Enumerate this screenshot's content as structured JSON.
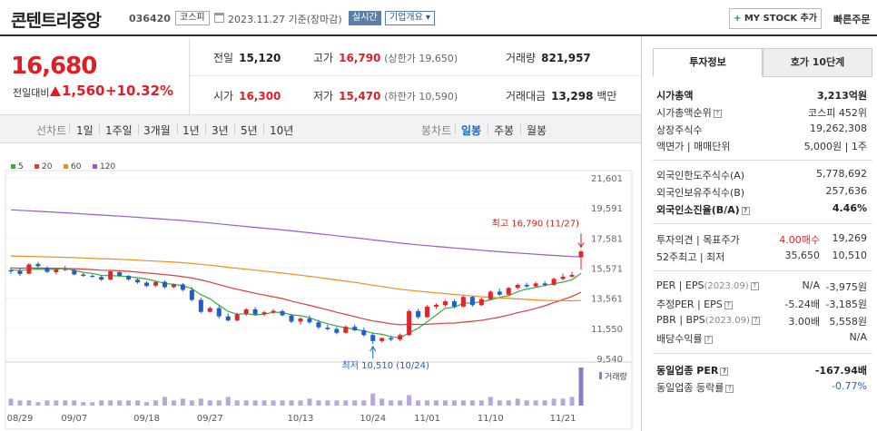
{
  "header": {
    "company_name": "콘텐트리중앙",
    "code": "036420",
    "market": "코스피",
    "date": "2023.11.27 기준(장마감)",
    "realtime_label": "실시간",
    "company_info_label": "기업개요",
    "mystock_button": "MY STOCK 추가",
    "mystock_plus": "+",
    "quick_order": "빠른주문"
  },
  "price": {
    "current": "16,680",
    "change_label": "전일대비",
    "change_amount": "1,560",
    "change_pct": "+10.32%"
  },
  "stats": {
    "prev_close": {
      "label": "전일",
      "value": "15,120"
    },
    "high": {
      "label": "고가",
      "value": "16,790",
      "sub": "(상한가 19,650)"
    },
    "volume": {
      "label": "거래량",
      "value": "821,957"
    },
    "open": {
      "label": "시가",
      "value": "16,300"
    },
    "low": {
      "label": "저가",
      "value": "15,470",
      "sub": "(하한가 10,590)"
    },
    "amount": {
      "label": "거래대금",
      "value": "13,298",
      "unit": "백만"
    }
  },
  "toolbar": {
    "line_chart_label": "선차트",
    "periods": [
      "1일",
      "1주일",
      "3개월",
      "1년",
      "3년",
      "5년",
      "10년"
    ],
    "candle_label": "봉차트",
    "candle_periods": [
      "일봉",
      "주봉",
      "월봉"
    ],
    "active_candle": "일봉"
  },
  "chart_data": {
    "type": "candlestick",
    "legend": [
      {
        "name": "5",
        "color": "#3aaa3a"
      },
      {
        "name": "20",
        "color": "#e03c3c"
      },
      {
        "name": "60",
        "color": "#f08c1e"
      },
      {
        "name": "120",
        "color": "#9b59d0"
      }
    ],
    "y_ticks": [
      "21,601",
      "19,591",
      "17,581",
      "15,571",
      "13,561",
      "11,550",
      "9,540"
    ],
    "y_range": [
      9540,
      21601
    ],
    "x_ticks": [
      "08/29",
      "09/07",
      "09/18",
      "09/27",
      "10/13",
      "10/24",
      "11/01",
      "11/10",
      "11/21"
    ],
    "annotations": {
      "high": "최고 16,790 (11/27)",
      "low": "최저 10,510 (10/24)"
    },
    "volume_label": "거래량",
    "candles": [
      [
        15420,
        15620,
        15200,
        15350
      ],
      [
        15380,
        15580,
        15050,
        15180
      ],
      [
        15200,
        15900,
        15150,
        15820
      ],
      [
        15850,
        15980,
        15620,
        15700
      ],
      [
        15600,
        15700,
        15250,
        15320
      ],
      [
        15300,
        15560,
        15150,
        15480
      ],
      [
        15500,
        15720,
        15380,
        15440
      ],
      [
        15450,
        15530,
        15090,
        15150
      ],
      [
        15140,
        15260,
        14990,
        15050
      ],
      [
        15060,
        15160,
        14920,
        14990
      ],
      [
        14980,
        15080,
        14720,
        14800
      ],
      [
        14810,
        15420,
        14750,
        15350
      ],
      [
        15300,
        15380,
        14980,
        15060
      ],
      [
        15050,
        15100,
        14730,
        14820
      ],
      [
        14800,
        14900,
        14520,
        14620
      ],
      [
        14600,
        14700,
        14300,
        14380
      ],
      [
        14400,
        14720,
        14300,
        14650
      ],
      [
        14650,
        14760,
        14200,
        14300
      ],
      [
        14300,
        14550,
        14240,
        14480
      ],
      [
        14480,
        14580,
        14020,
        14120
      ],
      [
        14100,
        14300,
        13350,
        13450
      ],
      [
        13450,
        13600,
        12550,
        12650
      ],
      [
        12650,
        13000,
        12600,
        12900
      ],
      [
        12900,
        13100,
        12200,
        12350
      ],
      [
        12350,
        12550,
        12000,
        12080
      ],
      [
        12080,
        12600,
        12000,
        12480
      ],
      [
        12480,
        12900,
        12380,
        12820
      ],
      [
        12820,
        12980,
        12400,
        12480
      ],
      [
        12480,
        12720,
        12350,
        12620
      ],
      [
        12600,
        12850,
        12500,
        12720
      ],
      [
        12700,
        12800,
        12350,
        12420
      ],
      [
        12400,
        12520,
        11900,
        12000
      ],
      [
        12000,
        12300,
        11800,
        12200
      ],
      [
        12200,
        12420,
        11850,
        11950
      ],
      [
        11950,
        12120,
        11500,
        11620
      ],
      [
        11600,
        11800,
        11400,
        11500
      ],
      [
        11500,
        11650,
        11150,
        11250
      ],
      [
        11250,
        11750,
        11200,
        11650
      ],
      [
        11650,
        11800,
        11350,
        11420
      ],
      [
        11420,
        11600,
        11000,
        11100
      ],
      [
        11100,
        11250,
        10510,
        10700
      ],
      [
        10700,
        10950,
        10600,
        10900
      ],
      [
        10900,
        11050,
        10680,
        10800
      ],
      [
        10800,
        11200,
        10700,
        11100
      ],
      [
        11100,
        12800,
        11050,
        12700
      ],
      [
        12700,
        12850,
        12200,
        12300
      ],
      [
        12300,
        13100,
        12250,
        13000
      ],
      [
        13000,
        13220,
        12850,
        13120
      ],
      [
        13100,
        13450,
        13000,
        13350
      ],
      [
        13350,
        13500,
        12900,
        13000
      ],
      [
        13000,
        13750,
        12950,
        13650
      ],
      [
        13650,
        13700,
        13000,
        13100
      ],
      [
        13100,
        13600,
        13050,
        13500
      ],
      [
        13500,
        14100,
        13450,
        14000
      ],
      [
        14000,
        14200,
        13700,
        13800
      ],
      [
        13800,
        14300,
        13750,
        14250
      ],
      [
        14250,
        14550,
        14150,
        14450
      ],
      [
        14450,
        14600,
        14250,
        14350
      ],
      [
        14350,
        14650,
        14300,
        14550
      ],
      [
        14550,
        14700,
        14350,
        14450
      ],
      [
        14450,
        14950,
        14400,
        14850
      ],
      [
        14850,
        15200,
        14750,
        15000
      ],
      [
        15000,
        15350,
        14950,
        15120
      ],
      [
        16300,
        16790,
        15470,
        16680
      ]
    ],
    "volumes": [
      4,
      3,
      3,
      2,
      3,
      3,
      3,
      3,
      2,
      2,
      3,
      3,
      3,
      3,
      3,
      2,
      3,
      5,
      3,
      4,
      3,
      4,
      3,
      3,
      5,
      3,
      3,
      3,
      3,
      3,
      3,
      3,
      3,
      4,
      3,
      3,
      3,
      3,
      3,
      3,
      7,
      4,
      3,
      3,
      6,
      3,
      3,
      3,
      3,
      3,
      3,
      3,
      3,
      5,
      3,
      3,
      4,
      3,
      3,
      3,
      4,
      4,
      5,
      22
    ]
  },
  "panel": {
    "tabs": [
      "투자정보",
      "호가 10단계"
    ],
    "market_cap": {
      "label": "시가총액",
      "value": "3,213억원"
    },
    "cap_rank": {
      "label": "시가총액순위",
      "value": "코스피 452위"
    },
    "shares": {
      "label": "상장주식수",
      "value": "19,262,308"
    },
    "face_value": {
      "label": "액면가 | 매매단위",
      "value": "5,000원 | 1주"
    },
    "foreign_limit": {
      "label": "외국인한도주식수(A)",
      "value": "5,778,692"
    },
    "foreign_hold": {
      "label": "외국인보유주식수(B)",
      "value": "257,636"
    },
    "foreign_ratio": {
      "label": "외국인소진율(B/A)",
      "value": "4.46%"
    },
    "opinion": {
      "label": "투자의견 | 목표주가",
      "mid": "4.00매수",
      "value": "19,269"
    },
    "week52": {
      "label": "52주최고 | 최저",
      "mid": "35,650",
      "value": "10,510"
    },
    "per_eps": {
      "label": "PER | EPS",
      "period": "(2023.09)",
      "mid": "N/A",
      "value": "-3,975원"
    },
    "est_per_eps": {
      "label": "추정PER | EPS",
      "mid": "-5.24배",
      "value": "-3,185원"
    },
    "pbr_bps": {
      "label": "PBR | BPS",
      "period": "(2023.09)",
      "mid": "3.00배",
      "value": "5,558원"
    },
    "dividend": {
      "label": "배당수익률",
      "value": "N/A"
    },
    "sector_per": {
      "label": "동일업종 PER",
      "value": "-167.94배"
    },
    "sector_rate": {
      "label": "동일업종 등락률",
      "value": "-0.77%"
    },
    "help_glyph": "?"
  }
}
